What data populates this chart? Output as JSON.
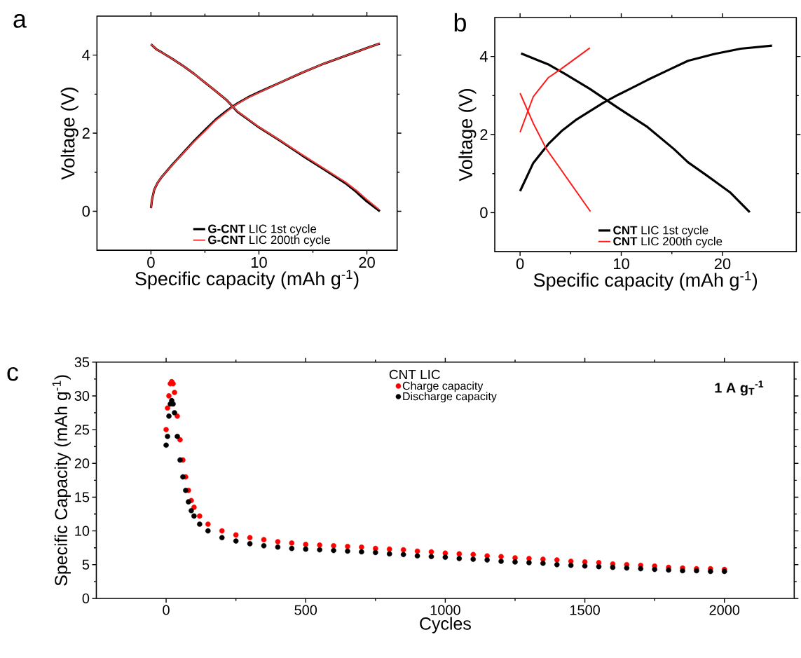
{
  "chart_data": [
    {
      "type": "line",
      "xlabel": "Specific capacity (mAh g$^{-1}$)",
      "ylabel": "Voltage (V)",
      "annotations": [
        "a"
      ],
      "xlim": [
        -5,
        22.8
      ],
      "ylim": [
        -1,
        5
      ],
      "xticks": [
        0,
        10,
        20
      ],
      "yticks": [
        0,
        2,
        4
      ],
      "legend": "bottom",
      "series": [
        {
          "name": "**G-CNT** LIC 1st cycle",
          "color": "#000000",
          "x": [
            0,
            0.1,
            0.3,
            0.6,
            1,
            2,
            3,
            4,
            5,
            6,
            7,
            7.5,
            8,
            9,
            10,
            12,
            14,
            16,
            18,
            20,
            21.2
          ],
          "values": [
            0.08,
            0.3,
            0.55,
            0.72,
            0.88,
            1.2,
            1.5,
            1.8,
            2.08,
            2.35,
            2.57,
            2.67,
            2.76,
            2.92,
            3.05,
            3.3,
            3.55,
            3.78,
            3.98,
            4.18,
            4.3
          ]
        },
        {
          "color": "#000000",
          "x": [
            0,
            0.5,
            1,
            2,
            3,
            4,
            5,
            6,
            7,
            7.5,
            8,
            9,
            10,
            12,
            14,
            16,
            18,
            19,
            20,
            21.2
          ],
          "values": [
            4.28,
            4.15,
            4.07,
            3.9,
            3.72,
            3.52,
            3.3,
            3.08,
            2.85,
            2.7,
            2.55,
            2.35,
            2.15,
            1.8,
            1.43,
            1.08,
            0.72,
            0.5,
            0.25,
            0.0
          ]
        },
        {
          "name": "**G-CNT** LIC 200th cycle",
          "color": "#f03c3c",
          "x": [
            0,
            0.1,
            0.3,
            0.6,
            1,
            2,
            3,
            4,
            5,
            6,
            7,
            7.5,
            8,
            9,
            10,
            12,
            14,
            16,
            18,
            20,
            21.2
          ],
          "values": [
            0.08,
            0.3,
            0.55,
            0.72,
            0.88,
            1.19,
            1.49,
            1.78,
            2.05,
            2.33,
            2.55,
            2.66,
            2.75,
            2.91,
            3.04,
            3.3,
            3.55,
            3.78,
            3.98,
            4.18,
            4.3
          ]
        },
        {
          "color": "#f03c3c",
          "x": [
            0,
            0.5,
            1,
            2,
            3,
            4,
            5,
            6,
            7,
            7.5,
            8,
            9,
            10,
            12,
            14,
            16,
            18,
            19,
            20,
            21.2
          ],
          "values": [
            4.28,
            4.15,
            4.07,
            3.9,
            3.72,
            3.52,
            3.3,
            3.08,
            2.85,
            2.7,
            2.56,
            2.36,
            2.16,
            1.81,
            1.45,
            1.1,
            0.75,
            0.54,
            0.3,
            0.03
          ]
        }
      ]
    },
    {
      "type": "line",
      "xlabel": "Specific capacity (mAh g$^{-1}$)",
      "ylabel": "Voltage (V)",
      "annotations": [
        "b"
      ],
      "xlim": [
        -2.5,
        27.3
      ],
      "ylim": [
        -1,
        5
      ],
      "xticks": [
        0,
        10,
        20
      ],
      "yticks": [
        0,
        2,
        4
      ],
      "legend": "bottom",
      "series": [
        {
          "name": "**CNT** LIC 1st cycle",
          "color": "#000000",
          "x": [
            0,
            1.3,
            2.8,
            4.1,
            5.6,
            8.2,
            9.7,
            11.1,
            12.6,
            14.7,
            16.6,
            19.3,
            21.8,
            24.9
          ],
          "values": [
            0.55,
            1.27,
            1.76,
            2.09,
            2.39,
            2.81,
            3.02,
            3.2,
            3.4,
            3.66,
            3.89,
            4.07,
            4.2,
            4.28
          ]
        },
        {
          "color": "#000000",
          "x": [
            0.1,
            2.85,
            4.4,
            6.9,
            9.7,
            12.5,
            15.2,
            16.6,
            18.3,
            20.8,
            22.7
          ],
          "values": [
            4.08,
            3.79,
            3.56,
            3.17,
            2.68,
            2.21,
            1.63,
            1.29,
            0.98,
            0.51,
            0.01
          ]
        },
        {
          "name": "**CNT** LIC 200th cycle",
          "color": "#ff1a1a",
          "x": [
            0,
            1.3,
            2.8,
            4.1,
            6.9
          ],
          "values": [
            2.06,
            2.97,
            3.46,
            3.69,
            4.22
          ]
        },
        {
          "color": "#ff1a1a",
          "x": [
            0,
            1.3,
            2.6,
            4.1,
            6.95
          ],
          "values": [
            3.06,
            2.29,
            1.63,
            1.08,
            0.03
          ]
        }
      ]
    },
    {
      "type": "scatter",
      "xlabel": "Cycles",
      "ylabel": "Specific Capacity (mAh g$^{-1}$)",
      "annotations": [
        "c",
        "1 A g$_{T}$$^{-1}$"
      ],
      "xlim": [
        -250,
        2250
      ],
      "ylim": [
        0,
        35
      ],
      "xticks": [
        0,
        500,
        1000,
        1500,
        2000
      ],
      "yticks": [
        0,
        5,
        10,
        15,
        20,
        25,
        30,
        35
      ],
      "legend": "top",
      "legend_title": "CNT LIC",
      "marker": "circle",
      "series": [
        {
          "name": "Charge capacity",
          "color": "#ff0000",
          "x": [
            0,
            5,
            10,
            15,
            20,
            25,
            30,
            40,
            50,
            60,
            70,
            80,
            90,
            100,
            120,
            150,
            200,
            250,
            300,
            350,
            400,
            450,
            500,
            550,
            600,
            650,
            700,
            750,
            800,
            850,
            900,
            950,
            1000,
            1050,
            1100,
            1150,
            1200,
            1250,
            1300,
            1350,
            1400,
            1450,
            1500,
            1550,
            1600,
            1650,
            1700,
            1750,
            1800,
            1850,
            1900,
            1950,
            2000
          ],
          "values": [
            25,
            28.2,
            30,
            31.8,
            32.1,
            31.8,
            30.5,
            27,
            23.5,
            20.5,
            18,
            16,
            14.5,
            13.5,
            12.2,
            11,
            10,
            9.4,
            9.0,
            8.7,
            8.4,
            8.2,
            8.0,
            7.9,
            7.8,
            7.7,
            7.6,
            7.4,
            7.3,
            7.2,
            7.0,
            6.9,
            6.7,
            6.6,
            6.5,
            6.3,
            6.2,
            6.0,
            5.9,
            5.8,
            5.7,
            5.5,
            5.4,
            5.3,
            5.1,
            5.0,
            4.9,
            4.8,
            4.6,
            4.5,
            4.4,
            4.4,
            4.3
          ]
        },
        {
          "name": "Discharge capacity",
          "color": "#000000",
          "x": [
            0,
            5,
            10,
            15,
            20,
            25,
            30,
            40,
            50,
            60,
            70,
            80,
            90,
            100,
            120,
            150,
            200,
            250,
            300,
            350,
            400,
            450,
            500,
            550,
            600,
            650,
            700,
            750,
            800,
            850,
            900,
            950,
            1000,
            1050,
            1100,
            1150,
            1200,
            1250,
            1300,
            1350,
            1400,
            1450,
            1500,
            1550,
            1600,
            1650,
            1700,
            1750,
            1800,
            1850,
            1900,
            1950,
            2000
          ],
          "values": [
            22.7,
            24,
            27,
            28.8,
            29.3,
            28.8,
            27.5,
            24,
            20.5,
            18,
            16,
            14.3,
            13,
            12.2,
            11,
            10,
            9,
            8.5,
            8.1,
            7.8,
            7.6,
            7.4,
            7.3,
            7.2,
            7.1,
            7.0,
            6.9,
            6.8,
            6.6,
            6.5,
            6.3,
            6.2,
            6.1,
            5.9,
            5.8,
            5.7,
            5.5,
            5.4,
            5.3,
            5.2,
            5.0,
            4.9,
            4.8,
            4.7,
            4.6,
            4.5,
            4.4,
            4.3,
            4.2,
            4.1,
            4.1,
            4.0,
            4.0
          ]
        }
      ]
    }
  ]
}
